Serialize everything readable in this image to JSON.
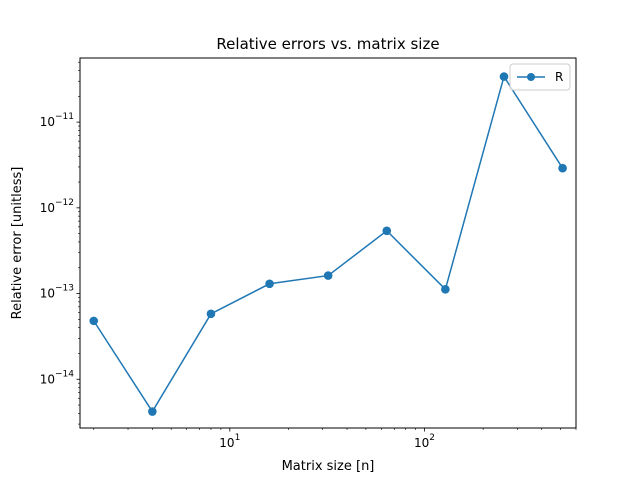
{
  "chart_data": {
    "type": "line",
    "title": "Relative errors vs. matrix size",
    "xlabel": "Matrix size [n]",
    "ylabel": "Relative error [unitless]",
    "xscale": "log",
    "yscale": "log",
    "xlim": [
      1.7,
      600
    ],
    "ylim": [
      2.7e-15,
      5.6e-11
    ],
    "x_major_ticks": [
      10,
      100
    ],
    "x_tick_labels": [
      {
        "base": "10",
        "exp": "1"
      },
      {
        "base": "10",
        "exp": "2"
      }
    ],
    "y_major_ticks": [
      1e-14,
      1e-13,
      1e-12,
      1e-11
    ],
    "y_tick_labels": [
      {
        "base": "10",
        "exp": "−14"
      },
      {
        "base": "10",
        "exp": "−13"
      },
      {
        "base": "10",
        "exp": "−12"
      },
      {
        "base": "10",
        "exp": "−11"
      }
    ],
    "grid": false,
    "legend": {
      "position": "upper right"
    },
    "series": [
      {
        "name": "R",
        "color": "#1f77b4",
        "marker": "circle",
        "x": [
          2,
          4,
          8,
          16,
          32,
          64,
          128,
          256,
          512
        ],
        "y": [
          4.8e-14,
          4.2e-15,
          5.8e-14,
          1.3e-13,
          1.62e-13,
          5.4e-13,
          1.12e-13,
          3.4e-11,
          2.9e-12
        ]
      }
    ]
  }
}
